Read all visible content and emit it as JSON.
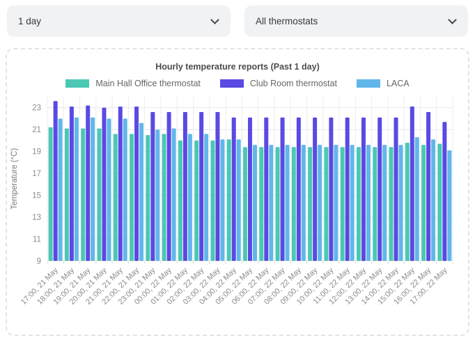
{
  "controls": {
    "period_dropdown": {
      "value": "1 day"
    },
    "thermostat_dropdown": {
      "value": "All thermostats"
    }
  },
  "chart": {
    "title": "Hourly temperature reports (Past 1 day)"
  },
  "chart_data": {
    "type": "bar",
    "title": "Hourly temperature reports (Past 1 day)",
    "xlabel": "",
    "ylabel": "Temperature (°C)",
    "ylim": [
      9,
      24
    ],
    "yticks": [
      9,
      11,
      13,
      15,
      17,
      19,
      21,
      23
    ],
    "grid": true,
    "legend_position": "top",
    "categories": [
      "17:00, 21 May",
      "18:00, 21 May",
      "19:00, 21 May",
      "20:00, 21 May",
      "21:00, 21 May",
      "22:00, 21 May",
      "23:00, 21 May",
      "00:00, 22 May",
      "01:00, 22 May",
      "02:00, 22 May",
      "03:00, 22 May",
      "04:00, 22 May",
      "05:00, 22 May",
      "06:00, 22 May",
      "07:00, 22 May",
      "08:00, 22 May",
      "09:00, 22 May",
      "10:00, 22 May",
      "11:00, 22 May",
      "12:00, 22 May",
      "13:00, 22 May",
      "14:00, 22 May",
      "15:00, 22 May",
      "16:00, 22 May",
      "17:00, 22 May"
    ],
    "series": [
      {
        "name": "Main Hall Office thermostat",
        "color": "#4bc8b4",
        "values": [
          21.2,
          21.1,
          21.1,
          21.1,
          20.6,
          20.6,
          20.5,
          20.6,
          20.0,
          20.0,
          20.0,
          20.1,
          19.4,
          19.4,
          19.4,
          19.4,
          19.4,
          19.4,
          19.4,
          19.4,
          19.4,
          19.4,
          19.8,
          19.6,
          19.7
        ]
      },
      {
        "name": "Club Room thermostat",
        "color": "#5a4ae3",
        "values": [
          23.6,
          23.1,
          23.2,
          23.0,
          23.1,
          23.1,
          22.6,
          22.6,
          22.6,
          22.6,
          22.6,
          22.1,
          22.1,
          22.1,
          22.1,
          22.1,
          22.1,
          22.1,
          22.1,
          22.1,
          22.1,
          22.1,
          23.1,
          22.6,
          21.7
        ]
      },
      {
        "name": "LACA",
        "color": "#61b6ea",
        "values": [
          22.0,
          22.1,
          22.1,
          22.0,
          22.0,
          21.6,
          21.0,
          21.1,
          20.6,
          20.6,
          20.1,
          20.1,
          19.6,
          19.6,
          19.6,
          19.6,
          19.6,
          19.6,
          19.6,
          19.6,
          19.6,
          19.6,
          20.3,
          20.1,
          19.1
        ]
      }
    ]
  }
}
